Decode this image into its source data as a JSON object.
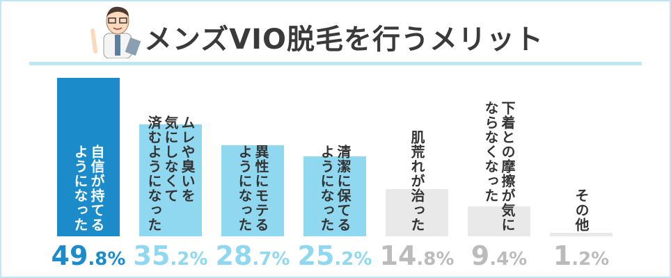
{
  "chart_data": {
    "type": "bar",
    "title": "メンズVIO脱毛を行うメリット",
    "categories": [
      "自信が持てる\nようになった",
      "ムレや臭いを\n気にしなくて\n済むようになった",
      "異性にモテる\nようになった",
      "清潔に保てる\nようになった",
      "肌荒れが治った",
      "下着との摩擦が気に\nならなくなった",
      "その他"
    ],
    "values": [
      49.8,
      35.2,
      28.7,
      25.2,
      14.8,
      9.4,
      1.2
    ],
    "value_labels": [
      "49.8%",
      "35.2%",
      "28.7%",
      "25.2%",
      "14.8%",
      "9.4%",
      "1.2%"
    ],
    "colors": [
      "#1b8bc9",
      "#8fd8f0",
      "#8fd8f0",
      "#8fd8f0",
      "#e9e9e9",
      "#e9e9e9",
      "#e9e9e9"
    ],
    "label_colors": [
      "#1b8bc9",
      "#8fd8f0",
      "#8fd8f0",
      "#8fd8f0",
      "#bbbbbb",
      "#bbbbbb",
      "#bbbbbb"
    ],
    "text_colors": [
      "#ffffff",
      "#333333",
      "#333333",
      "#333333",
      "#333333",
      "#333333",
      "#333333"
    ]
  }
}
